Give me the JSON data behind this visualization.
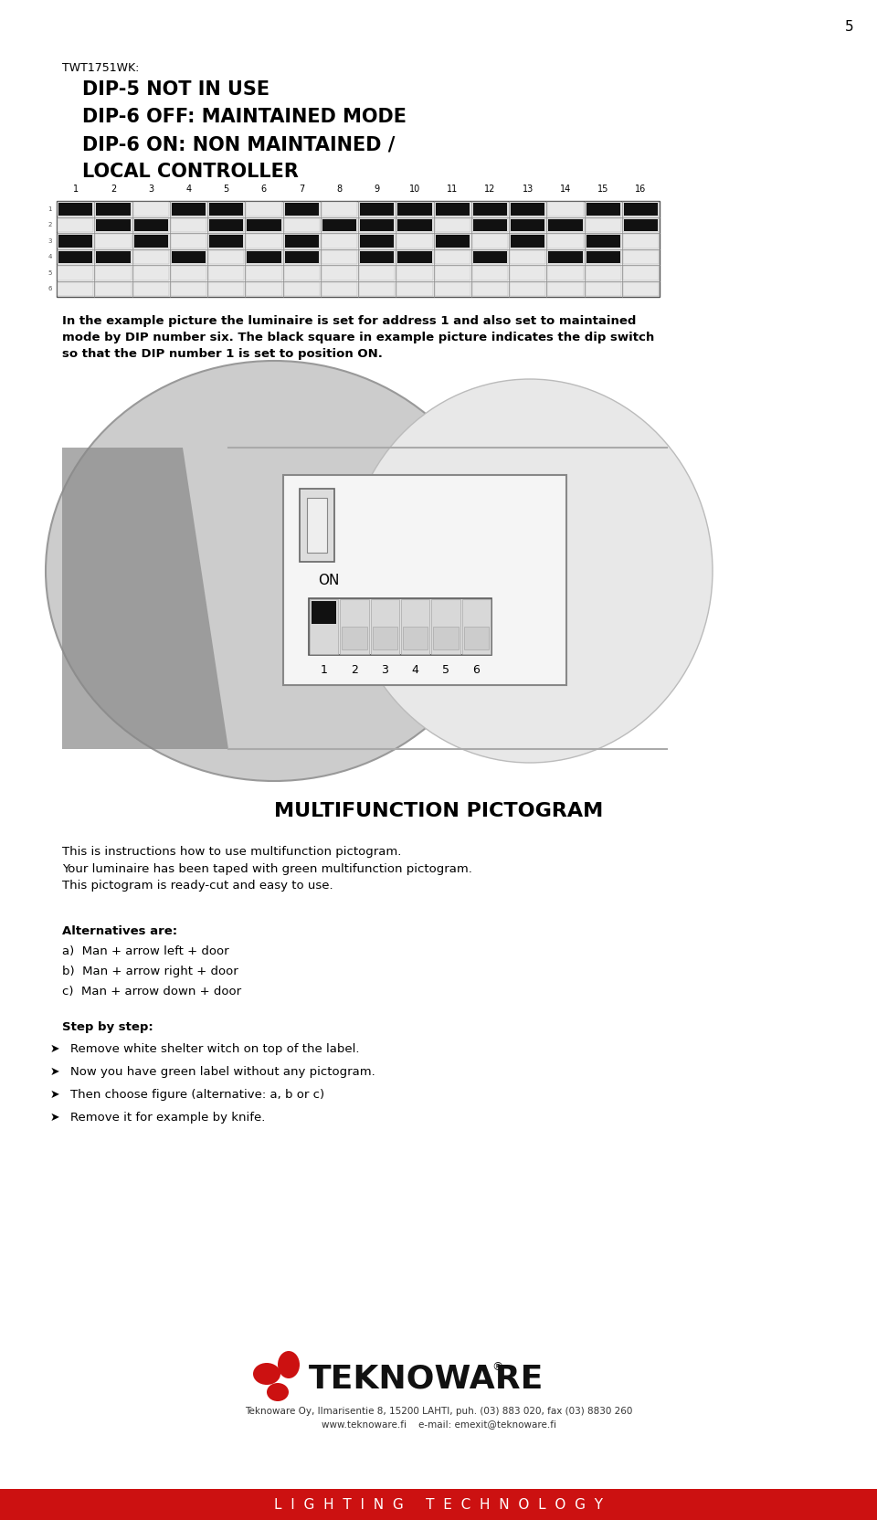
{
  "page_number": "5",
  "bg_color": "#ffffff",
  "red_bar_color": "#cc1111",
  "red_bar_text": "L  I  G  H  T  I  N  G     T  E  C  H  N  O  L  O  G  Y",
  "red_bar_text_color": "#ffffff",
  "title_label": "TWT1751WK:",
  "dip_lines": [
    "DIP-5 NOT IN USE",
    "DIP-6 OFF: MAINTAINED MODE",
    "DIP-6 ON: NON MAINTAINED /",
    "LOCAL CONTROLLER"
  ],
  "dip_numbers": [
    "1",
    "2",
    "3",
    "4",
    "5",
    "6",
    "7",
    "8",
    "9",
    "10",
    "11",
    "12",
    "13",
    "14",
    "15",
    "16"
  ],
  "body_text1": "In the example picture the luminaire is set for address 1 and also set to maintained\nmode by DIP number six. The black square in example picture indicates the dip switch\nso that the DIP number 1 is set to position ON.",
  "section_title": "MULTIFUNCTION PICTOGRAM",
  "para1": "This is instructions how to use multifunction pictogram.\nYour luminaire has been taped with green multifunction pictogram.\nThis pictogram is ready-cut and easy to use.",
  "alternatives_title": "Alternatives are:",
  "alternatives": [
    "a)  Man + arrow left + door",
    "b)  Man + arrow right + door",
    "c)  Man + arrow down + door"
  ],
  "step_title": "Step by step:",
  "steps": [
    "Remove white shelter witch on top of the label.",
    "Now you have green label without any pictogram.",
    "Then choose figure (alternative: a, b or c)",
    "Remove it for example by knife."
  ],
  "company_name": "TEKNOWARE",
  "company_address": "Teknoware Oy, Ilmarisentie 8, 15200 LAHTI, puh. (03) 883 020, fax (03) 8830 260",
  "company_web": "www.teknoware.fi    e-mail: emexit@teknoware.fi",
  "black_pattern": [
    [
      1,
      1,
      0,
      1,
      1,
      0,
      1,
      0,
      1,
      1,
      1,
      1,
      1,
      0,
      1,
      1
    ],
    [
      0,
      1,
      1,
      0,
      1,
      1,
      0,
      1,
      1,
      1,
      0,
      1,
      1,
      1,
      0,
      1
    ],
    [
      1,
      0,
      1,
      0,
      1,
      0,
      1,
      0,
      1,
      0,
      1,
      0,
      1,
      0,
      1,
      0
    ],
    [
      1,
      1,
      0,
      1,
      0,
      1,
      1,
      0,
      1,
      1,
      0,
      1,
      0,
      1,
      1,
      0
    ],
    [
      0,
      0,
      0,
      0,
      0,
      0,
      0,
      0,
      0,
      0,
      0,
      0,
      0,
      0,
      0,
      0
    ],
    [
      0,
      0,
      0,
      0,
      0,
      0,
      0,
      0,
      0,
      0,
      0,
      0,
      0,
      0,
      0,
      0
    ]
  ]
}
